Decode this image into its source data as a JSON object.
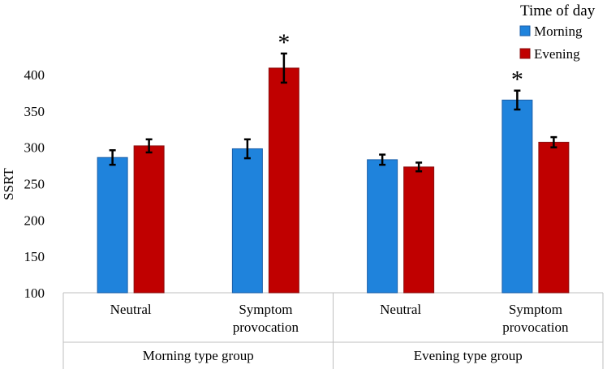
{
  "chart_data": {
    "type": "bar",
    "ylabel": "SSRT",
    "xlabel": "",
    "ylim": [
      100,
      400
    ],
    "yticks": [
      100,
      150,
      200,
      250,
      300,
      350,
      400
    ],
    "grid": false,
    "legend_position": "top-right",
    "legend_title": "Time of day",
    "groups": [
      {
        "label": "Morning type group",
        "categories": [
          {
            "label_lines": [
              "Neutral"
            ],
            "values": {
              "Morning": 286,
              "Evening": 302
            },
            "errors": {
              "Morning": 10,
              "Evening": 9
            },
            "star": ""
          },
          {
            "label_lines": [
              "Symptom",
              "provocation"
            ],
            "values": {
              "Morning": 298,
              "Evening": 409
            },
            "errors": {
              "Morning": 13,
              "Evening": 20
            },
            "star": "Evening"
          }
        ]
      },
      {
        "label": "Evening type group",
        "categories": [
          {
            "label_lines": [
              "Neutral"
            ],
            "values": {
              "Morning": 283,
              "Evening": 273
            },
            "errors": {
              "Morning": 7,
              "Evening": 6
            },
            "star": ""
          },
          {
            "label_lines": [
              "Symptom",
              "provocation"
            ],
            "values": {
              "Morning": 365,
              "Evening": 307
            },
            "errors": {
              "Morning": 13,
              "Evening": 7
            },
            "star": "Morning"
          }
        ]
      }
    ],
    "series": [
      {
        "name": "Morning",
        "color": "#1f83dc",
        "border": "#1a5ea8"
      },
      {
        "name": "Evening",
        "color": "#c00000",
        "border": "#8a1010"
      }
    ],
    "annotation_symbol": "*"
  }
}
